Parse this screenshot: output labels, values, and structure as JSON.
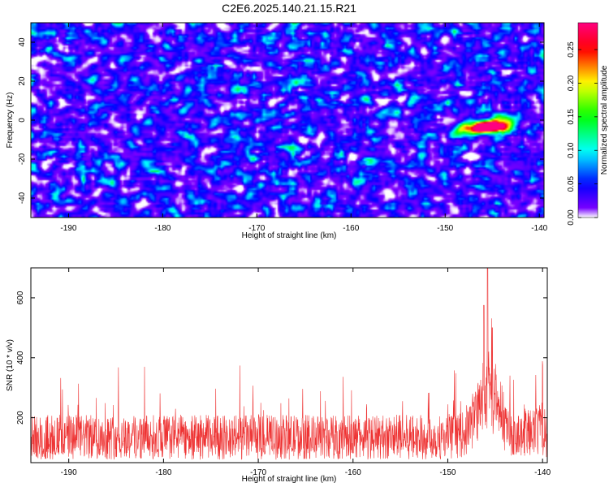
{
  "title": "C2E6.2025.140.21.15.R21",
  "chart_data": [
    {
      "type": "heatmap",
      "xlabel": "Height of straight line (km)",
      "ylabel": "Frequency (Hz)",
      "xlim": [
        -194,
        -139.5
      ],
      "ylim": [
        -50,
        50
      ],
      "xticks": [
        -190,
        -180,
        -170,
        -160,
        -150,
        -140
      ],
      "yticks": [
        -40,
        -20,
        0,
        20,
        40
      ],
      "colorbar_label": "Normalized spectral amplitude",
      "colorbar_ticks": [
        0.0,
        0.05,
        0.1,
        0.15,
        0.2,
        0.25
      ],
      "colorbar_tick_labels": [
        "0.00",
        "0.05",
        "0.10",
        "0.15",
        "0.20",
        "0.25"
      ],
      "colorbar_range": [
        0,
        0.29
      ],
      "colormap": [
        "#ffffff",
        "#8000ff",
        "#0000ff",
        "#00ffff",
        "#00ff00",
        "#ffff00",
        "#ff0000",
        "#ff0080"
      ],
      "peak": {
        "x": -146,
        "y": -3,
        "amplitude": 0.29
      },
      "secondary_peaks": [
        {
          "x": -144.5,
          "y": -3,
          "amplitude": 0.22
        },
        {
          "x": -148,
          "y": -5,
          "amplitude": 0.14
        },
        {
          "x": -143.5,
          "y": 1,
          "amplitude": 0.12
        }
      ]
    },
    {
      "type": "line",
      "xlabel": "Height of straight line (km)",
      "ylabel": "SNR (10 * v/v)",
      "xlim": [
        -194,
        -139.5
      ],
      "ylim": [
        50,
        700
      ],
      "xticks": [
        -190,
        -180,
        -170,
        -160,
        -150,
        -140
      ],
      "yticks": [
        200,
        400,
        600
      ],
      "line_color": "#ee3333",
      "baseline_mean": 135,
      "noise_peak_max": 365,
      "peak": {
        "x": -145.8,
        "y": 700
      },
      "secondary_peaks": [
        {
          "x": -146.2,
          "y": 575
        },
        {
          "x": -145.3,
          "y": 500
        },
        {
          "x": -140,
          "y": 335
        }
      ]
    }
  ]
}
